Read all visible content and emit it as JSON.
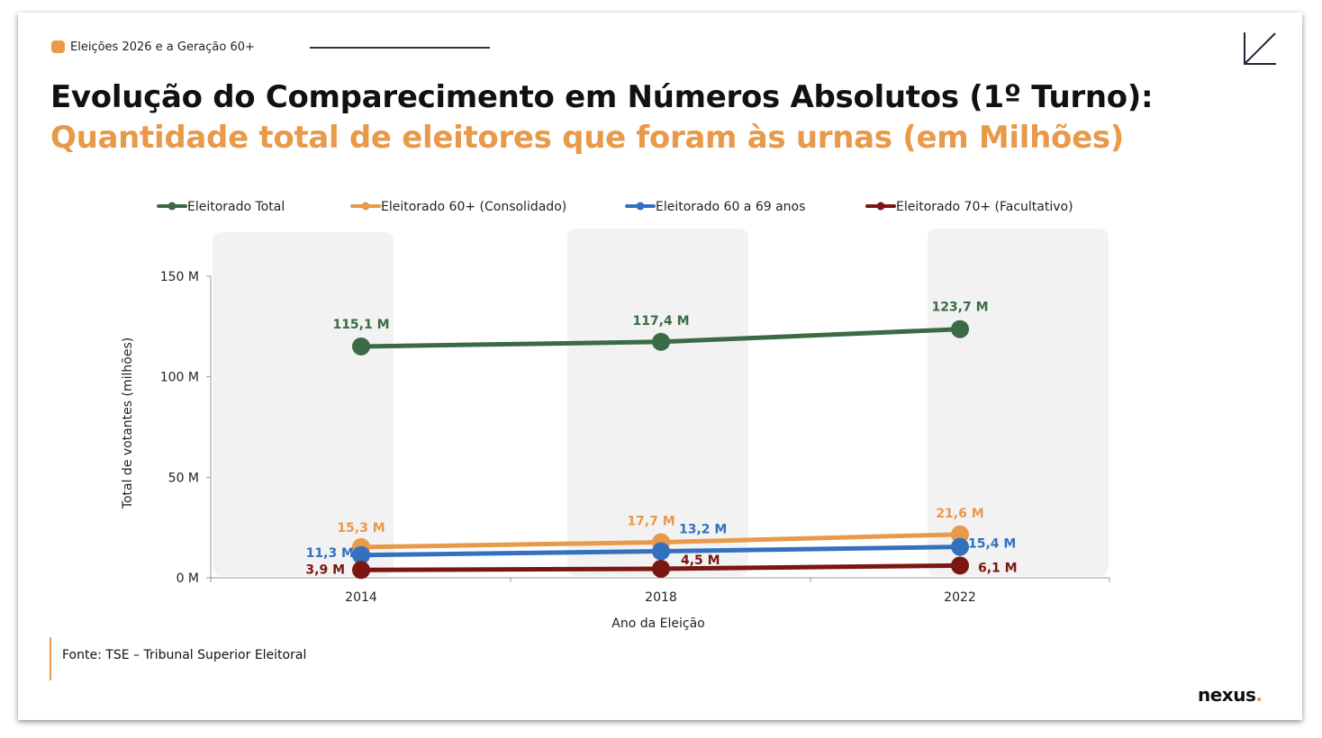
{
  "header": {
    "tag": "Eleições 2026 e a Geração 60+",
    "title": "Evolução do Comparecimento em Números Absolutos (1º Turno):",
    "subtitle": "Quantidade total de eleitores que foram às urnas (em Milhões)"
  },
  "footer": {
    "source": "Fonte: TSE – Tribunal Superior Eleitoral",
    "logo": "nexus",
    "logo_dot": "."
  },
  "chart_data": {
    "type": "line",
    "xlabel": "Ano da Eleição",
    "ylabel": "Total de votantes (milhões)",
    "ylim": [
      0,
      150
    ],
    "yticks": [
      0,
      50,
      100,
      150
    ],
    "ytick_labels": [
      "0 M",
      "50 M",
      "100 M",
      "150 M"
    ],
    "categories": [
      "2014",
      "2018",
      "2022"
    ],
    "legend_position": "top",
    "series": [
      {
        "name": "Eleitorado Total",
        "color": "#3B6B45",
        "values": [
          115.1,
          117.4,
          123.7
        ],
        "labels": [
          "115,1 M",
          "117,4 M",
          "123,7 M"
        ]
      },
      {
        "name": "Eleitorado 60+ (Consolidado)",
        "color": "#E8994A",
        "values": [
          15.3,
          17.7,
          21.6
        ],
        "labels": [
          "15,3 M",
          "17,7 M",
          "21,6 M"
        ]
      },
      {
        "name": "Eleitorado 60 a 69 anos",
        "color": "#3371BE",
        "values": [
          11.3,
          13.2,
          15.4
        ],
        "labels": [
          "11,3 M",
          "13,2 M",
          "15,4 M"
        ]
      },
      {
        "name": "Eleitorado 70+ (Facultativo)",
        "color": "#7A1712",
        "values": [
          3.9,
          4.5,
          6.1
        ],
        "labels": [
          "3,9 M",
          "4,5 M",
          "6,1 M"
        ]
      }
    ]
  }
}
